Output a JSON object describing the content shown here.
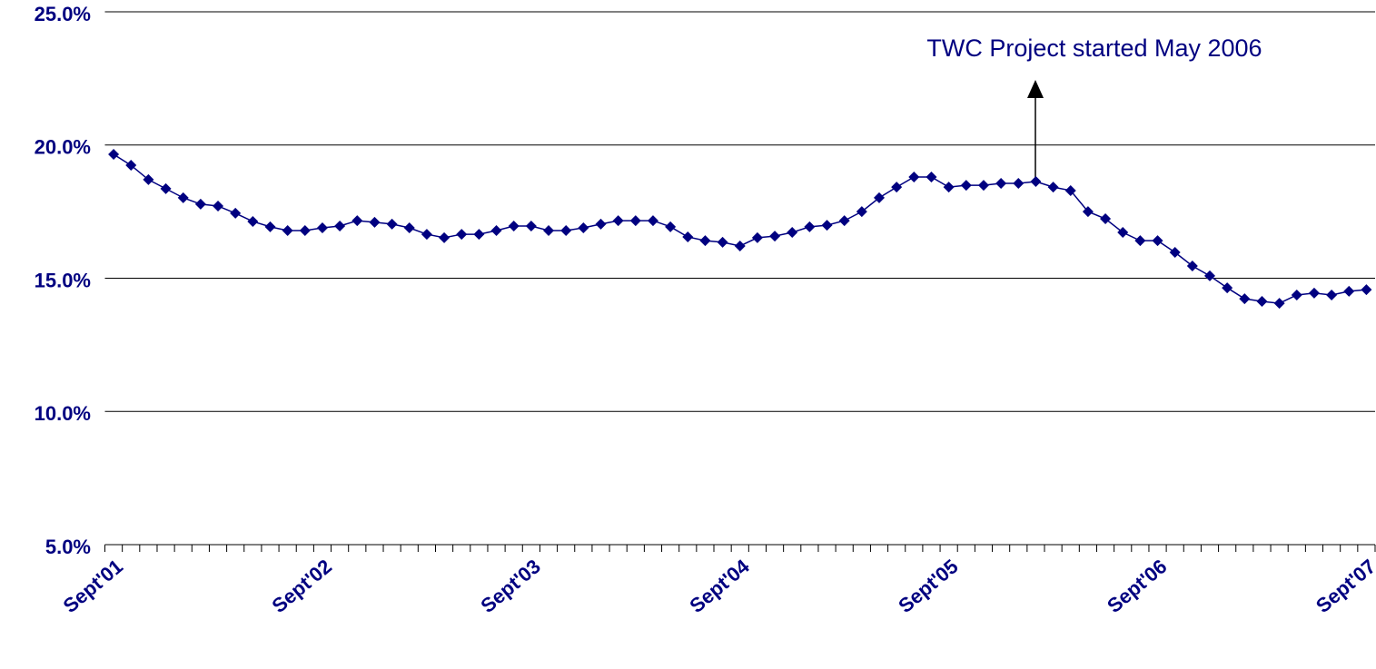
{
  "chart_data": {
    "type": "line",
    "annotation": "TWC Project started May 2006",
    "categories": [
      "Sept'01",
      null,
      null,
      null,
      null,
      null,
      null,
      null,
      null,
      null,
      null,
      null,
      "Sept'02",
      null,
      null,
      null,
      null,
      null,
      null,
      null,
      null,
      null,
      null,
      null,
      "Sept'03",
      null,
      null,
      null,
      null,
      null,
      null,
      null,
      null,
      null,
      null,
      null,
      "Sept'04",
      null,
      null,
      null,
      null,
      null,
      null,
      null,
      null,
      null,
      null,
      null,
      "Sept'05",
      null,
      null,
      null,
      null,
      null,
      null,
      null,
      null,
      null,
      null,
      null,
      "Sept'06",
      null,
      null,
      null,
      null,
      null,
      null,
      null,
      null,
      null,
      null,
      null,
      "Sept'07"
    ],
    "values": [
      19.65,
      19.24,
      18.7,
      18.36,
      18.02,
      17.78,
      17.71,
      17.44,
      17.13,
      16.93,
      16.79,
      16.79,
      16.89,
      16.96,
      17.16,
      17.1,
      17.03,
      16.89,
      16.65,
      16.52,
      16.65,
      16.65,
      16.79,
      16.96,
      16.96,
      16.79,
      16.79,
      16.89,
      17.03,
      17.16,
      17.16,
      17.16,
      16.93,
      16.55,
      16.41,
      16.35,
      16.21,
      16.52,
      16.58,
      16.72,
      16.93,
      16.99,
      17.16,
      17.5,
      18.02,
      18.42,
      18.8,
      18.8,
      18.42,
      18.49,
      18.49,
      18.56,
      18.56,
      18.63,
      18.42,
      18.29,
      17.5,
      17.23,
      16.72,
      16.41,
      16.41,
      15.97,
      15.46,
      15.09,
      14.64,
      14.23,
      14.13,
      14.06,
      14.37,
      14.44,
      14.37,
      14.51,
      14.57
    ],
    "color": "#000080",
    "ylim": [
      5,
      25
    ],
    "yticks": [
      {
        "value": 5,
        "label": "5.0%"
      },
      {
        "value": 10,
        "label": "10.0%"
      },
      {
        "value": 15,
        "label": "15.0%"
      },
      {
        "value": 20,
        "label": "20.0%"
      },
      {
        "value": 25,
        "label": "25.0%"
      }
    ],
    "grid": true
  }
}
